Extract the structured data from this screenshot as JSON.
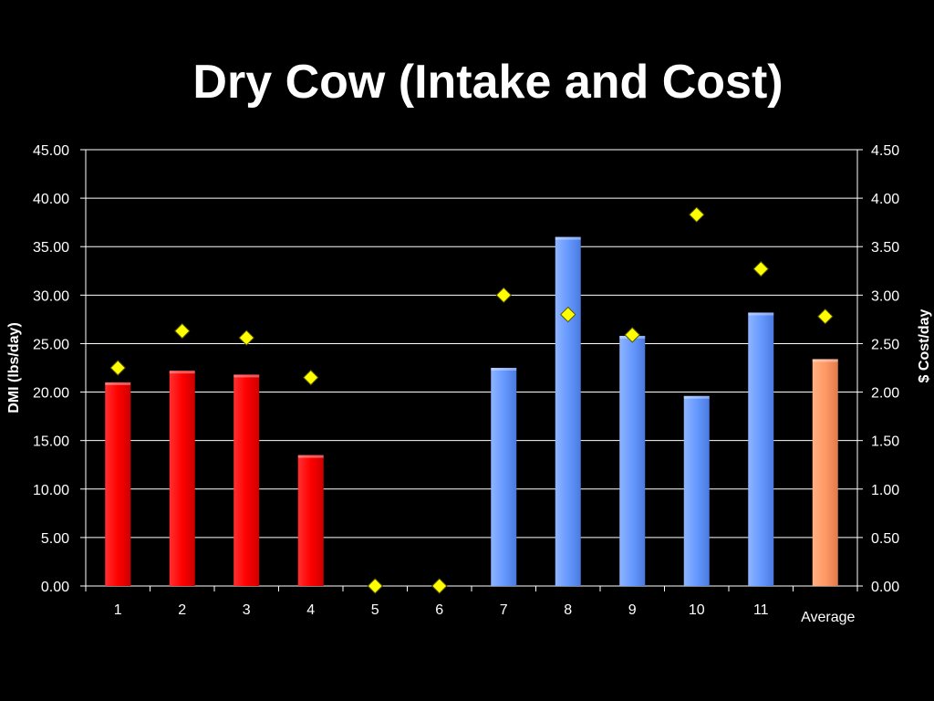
{
  "slide": {
    "title": "Dry Cow (Intake and Cost)"
  },
  "chart_data": {
    "type": "bar",
    "categories": [
      "1",
      "2",
      "3",
      "4",
      "5",
      "6",
      "7",
      "8",
      "9",
      "10",
      "11",
      "Average"
    ],
    "series": [
      {
        "axis": "left",
        "type": "bar",
        "values": [
          21.0,
          22.2,
          21.8,
          13.5,
          0,
          0,
          22.5,
          36.0,
          25.8,
          19.6,
          28.2,
          23.4
        ],
        "colors": [
          "#ff0000",
          "#ff0000",
          "#ff0000",
          "#ff0000",
          "#ff0000",
          "#ff0000",
          "#6699ff",
          "#6699ff",
          "#6699ff",
          "#6699ff",
          "#6699ff",
          "#ff9966"
        ]
      },
      {
        "axis": "right",
        "type": "scatter",
        "marker": "diamond",
        "color": "#ffff00",
        "values": [
          2.25,
          2.63,
          2.56,
          2.15,
          0.0,
          0.0,
          3.0,
          2.8,
          2.59,
          3.83,
          3.27,
          2.78
        ]
      }
    ],
    "ylabel": "DMI (lbs/day)",
    "ylabel_right": "$ Cost/day",
    "ylim": [
      0,
      45
    ],
    "ylim_right": [
      0,
      4.5
    ],
    "yticks": [
      "0.00",
      "5.00",
      "10.00",
      "15.00",
      "20.00",
      "25.00",
      "30.00",
      "35.00",
      "40.00",
      "45.00"
    ],
    "yticks_right": [
      "0.00",
      "0.50",
      "1.00",
      "1.50",
      "2.00",
      "2.50",
      "3.00",
      "3.50",
      "4.00",
      "4.50"
    ],
    "grid": true,
    "legend": "none",
    "background": "#000000",
    "gridline_color": "#ffffff"
  }
}
